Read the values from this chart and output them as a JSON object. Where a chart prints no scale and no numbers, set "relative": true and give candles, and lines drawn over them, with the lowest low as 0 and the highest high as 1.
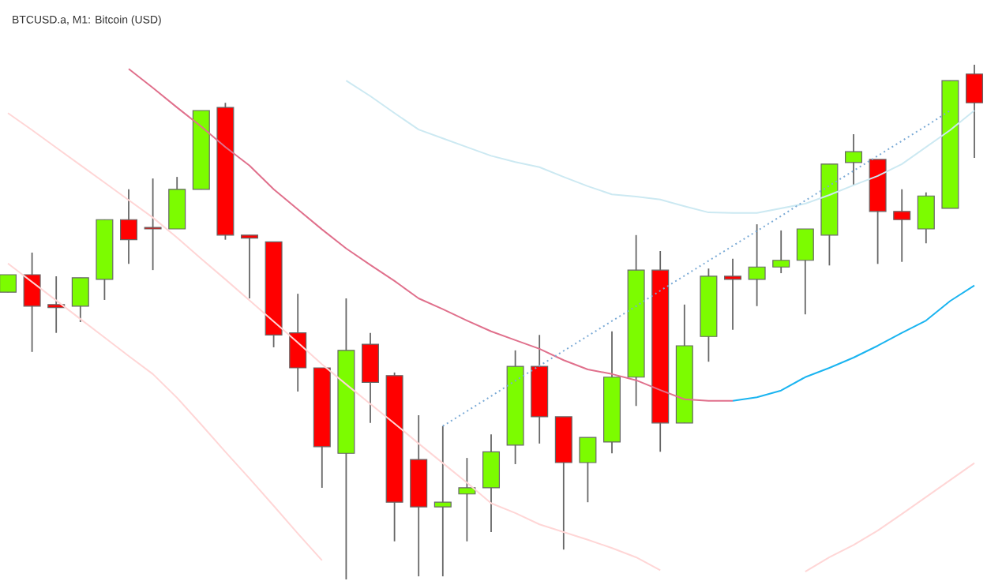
{
  "chart_data": {
    "type": "candlestick",
    "title": "BTCUSD.a, M1: Bitcoin (USD)",
    "relative": true,
    "categories": [
      null,
      null,
      null,
      null,
      null,
      null,
      null,
      null,
      null,
      null,
      null,
      null,
      null,
      null,
      null,
      null,
      null,
      null,
      null,
      null,
      null,
      null,
      null,
      null,
      null,
      null,
      null,
      null,
      null,
      null,
      null,
      null,
      null,
      null,
      null,
      null,
      null,
      null,
      null,
      null,
      null
    ],
    "ohlc": [
      [
        0.558,
        0.592,
        0.558,
        0.592
      ],
      [
        0.592,
        0.635,
        0.442,
        0.531
      ],
      [
        0.534,
        0.589,
        0.479,
        0.528
      ],
      [
        0.531,
        0.586,
        0.5,
        0.586
      ],
      [
        0.583,
        0.699,
        0.543,
        0.699
      ],
      [
        0.699,
        0.758,
        0.613,
        0.66
      ],
      [
        0.684,
        0.779,
        0.601,
        0.681
      ],
      [
        0.681,
        0.782,
        0.681,
        0.758
      ],
      [
        0.758,
        0.911,
        0.758,
        0.911
      ],
      [
        0.917,
        0.926,
        0.66,
        0.669
      ],
      [
        0.669,
        0.669,
        0.546,
        0.663
      ],
      [
        0.656,
        0.656,
        0.451,
        0.475
      ],
      [
        0.479,
        0.555,
        0.365,
        0.411
      ],
      [
        0.411,
        0.411,
        0.178,
        0.258
      ],
      [
        0.245,
        0.546,
        0,
        0.445
      ],
      [
        0.457,
        0.479,
        0.304,
        0.383
      ],
      [
        0.396,
        0.402,
        0.074,
        0.15
      ],
      [
        0.233,
        0.319,
        0.006,
        0.141
      ],
      [
        0.141,
        0.298,
        0.006,
        0.15
      ],
      [
        0.166,
        0.236,
        0.074,
        0.178
      ],
      [
        0.178,
        0.282,
        0.092,
        0.248
      ],
      [
        0.261,
        0.445,
        0.224,
        0.414
      ],
      [
        0.414,
        0.475,
        0.264,
        0.316
      ],
      [
        0.316,
        0.316,
        0.058,
        0.227
      ],
      [
        0.227,
        0.276,
        0.15,
        0.276
      ],
      [
        0.267,
        0.482,
        0.245,
        0.393
      ],
      [
        0.393,
        0.669,
        0.337,
        0.601
      ],
      [
        0.601,
        0.638,
        0.248,
        0.304
      ],
      [
        0.304,
        0.534,
        0.304,
        0.454
      ],
      [
        0.472,
        0.604,
        0.423,
        0.589
      ],
      [
        0.589,
        0.623,
        0.485,
        0.583
      ],
      [
        0.583,
        0.69,
        0.531,
        0.607
      ],
      [
        0.607,
        0.678,
        0.595,
        0.62
      ],
      [
        0.62,
        0.681,
        0.515,
        0.681
      ],
      [
        0.669,
        0.807,
        0.61,
        0.807
      ],
      [
        0.81,
        0.865,
        0.767,
        0.831
      ],
      [
        0.816,
        0.816,
        0.613,
        0.715
      ],
      [
        0.715,
        0.758,
        0.617,
        0.699
      ],
      [
        0.681,
        0.752,
        0.653,
        0.745
      ],
      [
        0.721,
        0.969,
        0.721,
        0.969
      ],
      [
        0.982,
        1,
        0.819,
        0.926
      ]
    ],
    "colors": [
      "#7cfc00",
      "#ff0000",
      "#ff0000",
      "#7cfc00",
      "#7cfc00",
      "#ff0000",
      "#ff0000",
      "#7cfc00",
      "#7cfc00",
      "#ff0000",
      "#ff0000",
      "#ff0000",
      "#ff0000",
      "#ff0000",
      "#7cfc00",
      "#ff0000",
      "#ff0000",
      "#ff0000",
      "#7cfc00",
      "#7cfc00",
      "#7cfc00",
      "#7cfc00",
      "#ff0000",
      "#ff0000",
      "#7cfc00",
      "#7cfc00",
      "#7cfc00",
      "#ff0000",
      "#7cfc00",
      "#7cfc00",
      "#ff0000",
      "#7cfc00",
      "#7cfc00",
      "#7cfc00",
      "#7cfc00",
      "#7cfc00",
      "#ff0000",
      "#ff0000",
      "#7cfc00",
      "#7cfc00",
      "#ff0000"
    ],
    "series": [
      {
        "type": "line",
        "color": "#ffd6d6",
        "values": [
          0.906,
          0.873,
          0.839,
          0.805,
          0.771,
          0.737,
          0.703,
          0.664,
          0.623,
          0.583,
          0.542,
          0.501,
          0.46,
          0.418,
          0.379,
          0.341,
          0.303,
          0.264,
          0.226,
          0.188,
          0.148,
          0.129,
          0.107,
          0.092,
          0.077,
          0.061,
          0.043,
          0.018,
          null,
          null,
          null,
          null,
          null,
          null,
          null,
          null,
          null,
          null,
          null,
          null,
          null
        ]
      },
      {
        "type": "line",
        "color": "#ffd6d6",
        "values": [
          0.614,
          0.578,
          0.542,
          0.506,
          0.47,
          0.434,
          0.399,
          0.353,
          0.301,
          0.248,
          0.196,
          0.143,
          0.089,
          0.037,
          null,
          null,
          null,
          null,
          null,
          null,
          null,
          null,
          null,
          null,
          null,
          null,
          null,
          null,
          null,
          null,
          null,
          null,
          null,
          0.015,
          0.043,
          0.067,
          0.095,
          0.127,
          0.16,
          0.193,
          0.226
        ]
      },
      {
        "type": "line",
        "color": "#cce9f2",
        "values": [
          null,
          null,
          null,
          null,
          null,
          null,
          null,
          null,
          null,
          null,
          null,
          null,
          null,
          null,
          0.969,
          0.939,
          0.906,
          0.874,
          0.857,
          0.84,
          0.823,
          0.811,
          0.801,
          0.782,
          0.764,
          0.748,
          0.744,
          0.738,
          0.725,
          0.713,
          0.712,
          0.712,
          0.721,
          0.73,
          0.747,
          0.766,
          0.784,
          0.807,
          0.84,
          0.873,
          0.911
        ]
      },
      {
        "type": "line",
        "color": "#e0708c",
        "values": [
          null,
          null,
          null,
          null,
          null,
          0.992,
          0.955,
          0.917,
          0.88,
          0.84,
          0.804,
          0.758,
          0.719,
          0.68,
          0.643,
          0.611,
          0.58,
          0.546,
          0.525,
          0.503,
          0.482,
          0.465,
          0.448,
          0.426,
          0.408,
          0.399,
          0.387,
          0.368,
          0.35,
          0.347,
          0.347,
          null,
          null,
          null,
          null,
          null,
          null,
          null,
          null,
          null,
          null
        ]
      },
      {
        "type": "line",
        "color": "#1ab4f0",
        "values": [
          null,
          null,
          null,
          null,
          null,
          null,
          null,
          null,
          null,
          null,
          null,
          null,
          null,
          null,
          null,
          null,
          null,
          null,
          null,
          null,
          null,
          null,
          null,
          null,
          null,
          null,
          null,
          null,
          null,
          null,
          0.347,
          0.354,
          0.367,
          0.393,
          0.411,
          0.431,
          0.454,
          0.479,
          0.503,
          0.541,
          0.571
        ]
      },
      {
        "type": "line",
        "color": "#7aaad6",
        "line_style": "dotted",
        "values": [
          null,
          null,
          null,
          null,
          null,
          null,
          null,
          null,
          null,
          null,
          null,
          null,
          null,
          null,
          null,
          null,
          null,
          null,
          0.298,
          0.327,
          0.356,
          0.386,
          0.415,
          0.444,
          0.473,
          0.502,
          0.531,
          0.561,
          0.59,
          0.619,
          0.648,
          0.677,
          0.706,
          0.736,
          0.765,
          0.794,
          0.823,
          0.852,
          0.881,
          0.911,
          null
        ]
      }
    ]
  }
}
